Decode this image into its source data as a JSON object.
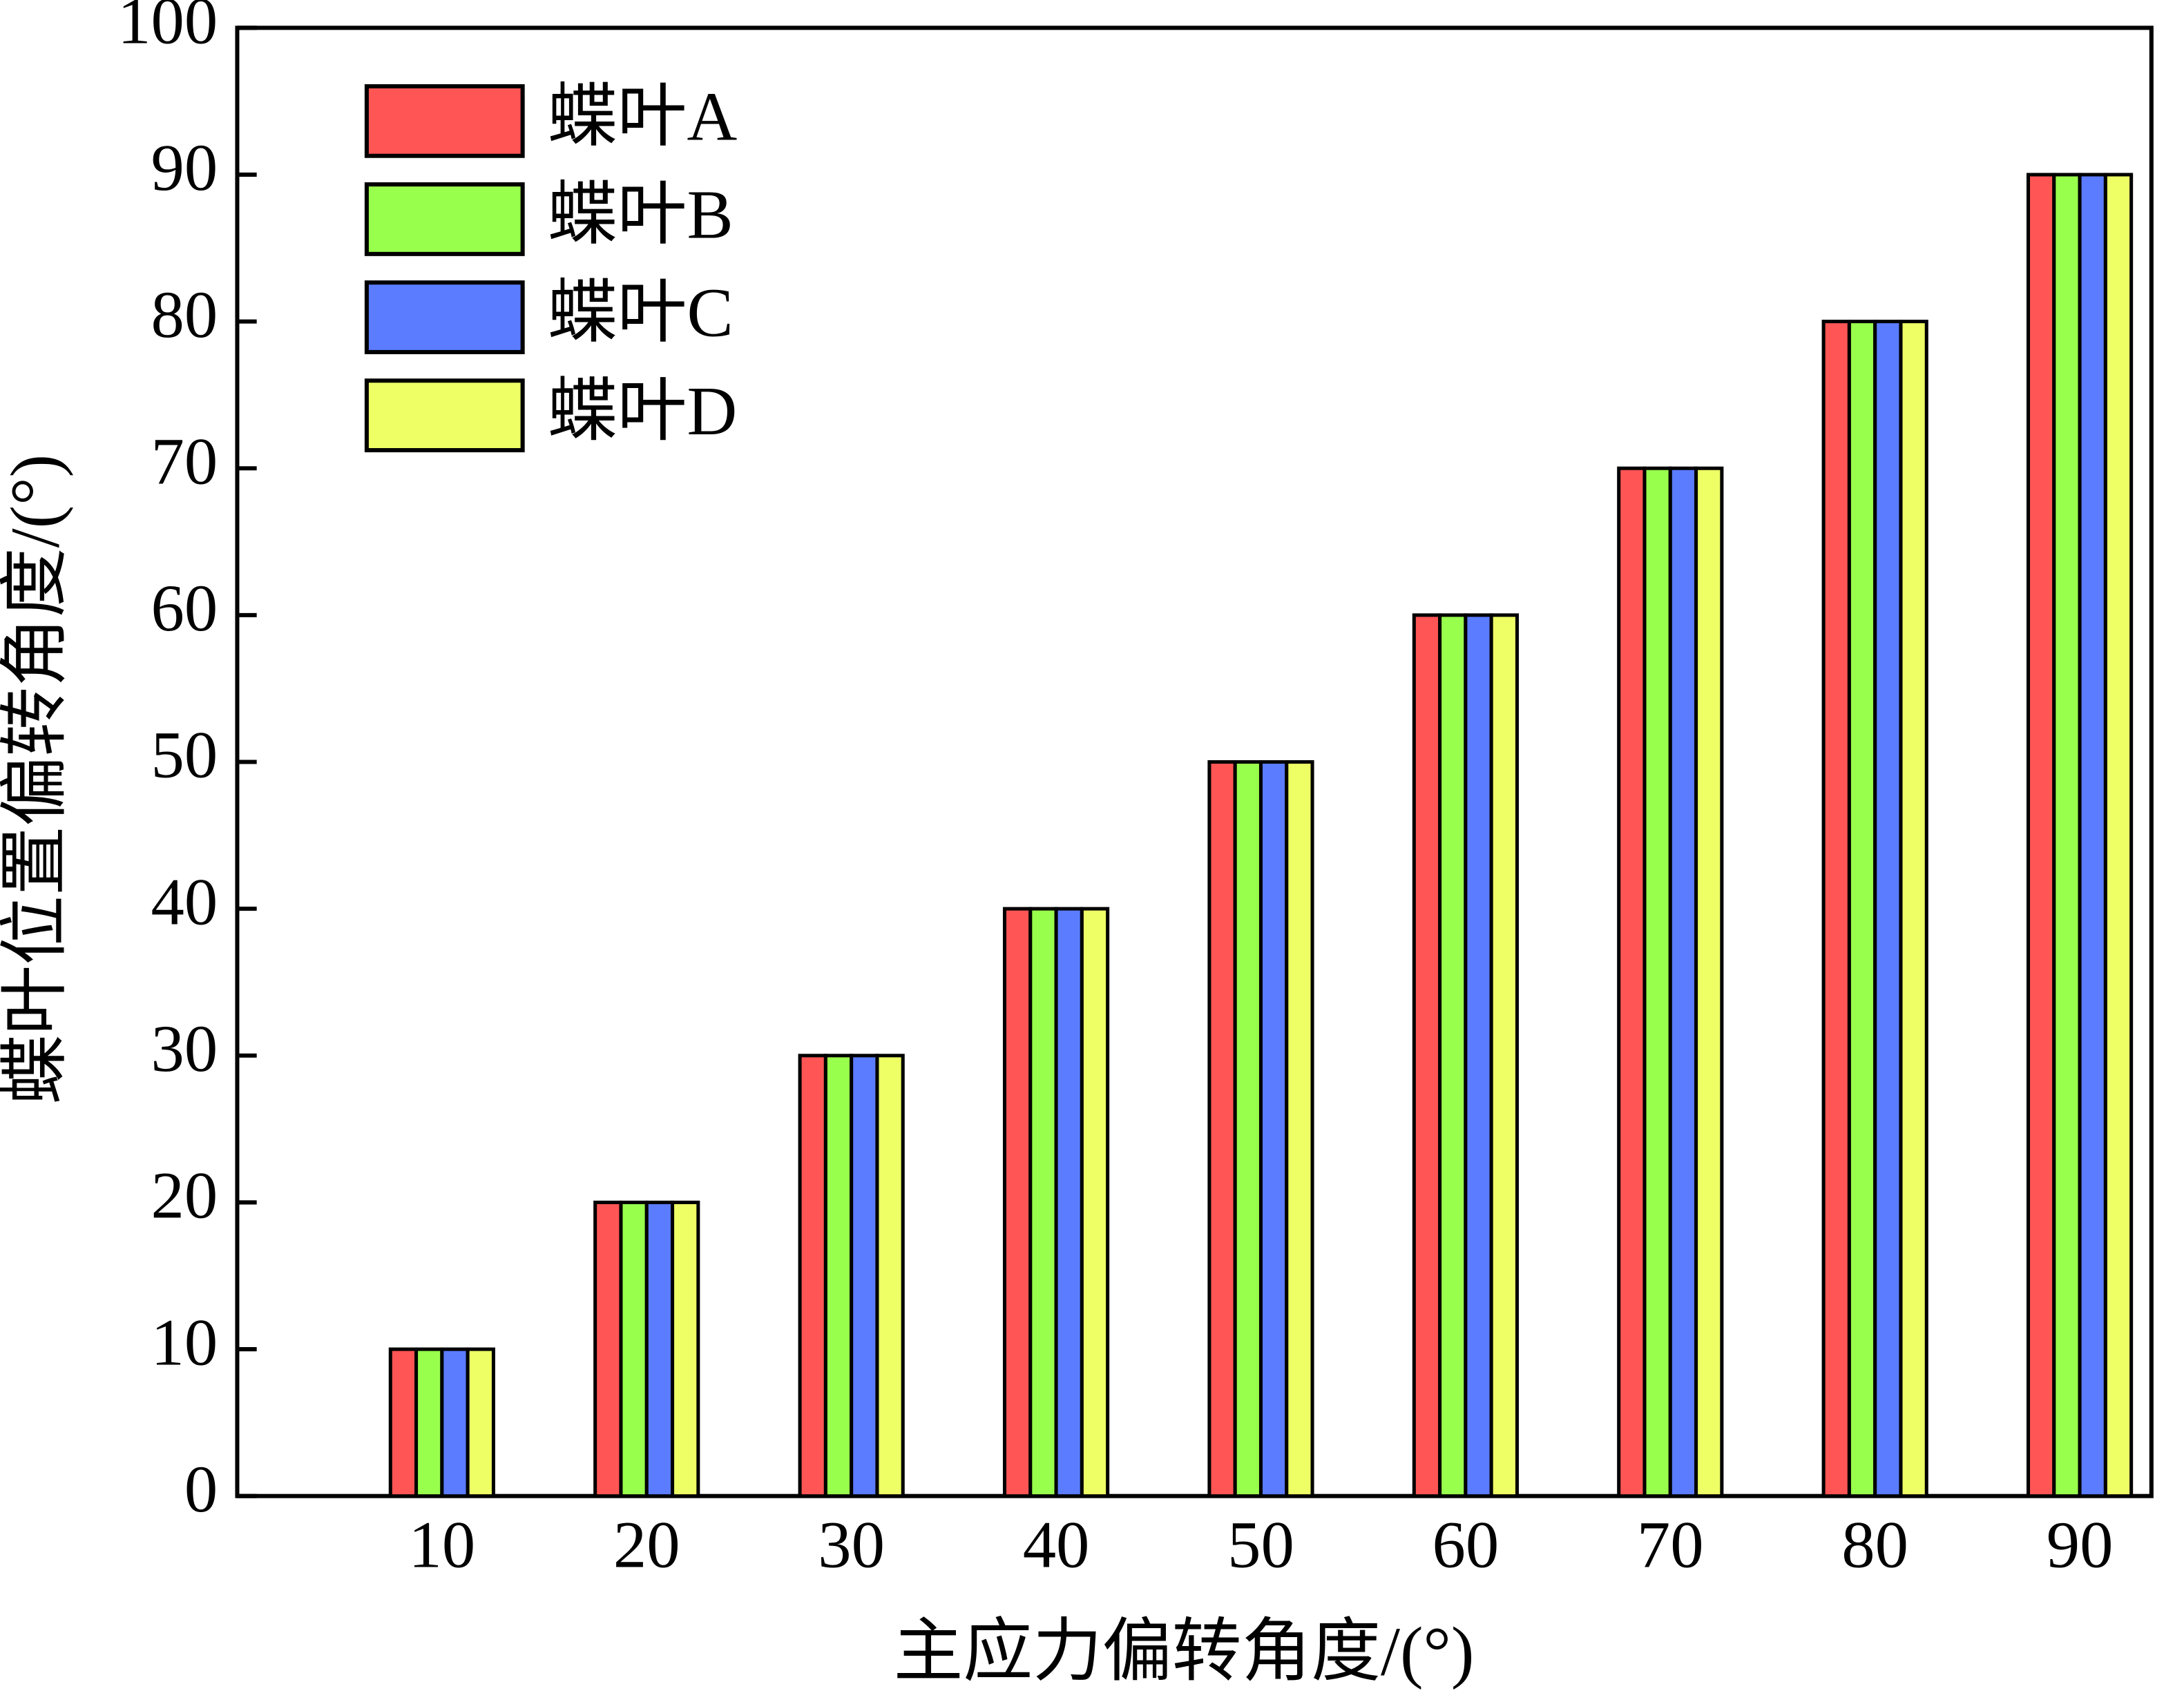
{
  "chart_data": {
    "type": "bar",
    "xlabel": "主应力偏转角度/(°)",
    "ylabel": "蝶叶位置偏转角度/(°)",
    "categories": [
      "10",
      "20",
      "30",
      "40",
      "50",
      "60",
      "70",
      "80",
      "90"
    ],
    "series": [
      {
        "name": "蝶叶A",
        "color": "#ff5555",
        "values": [
          10,
          20,
          30,
          40,
          50,
          60,
          70,
          80,
          90
        ]
      },
      {
        "name": "蝶叶B",
        "color": "#99ff4d",
        "values": [
          10,
          20,
          30,
          40,
          50,
          60,
          70,
          80,
          90
        ]
      },
      {
        "name": "蝶叶C",
        "color": "#5b7cff",
        "values": [
          10,
          20,
          30,
          40,
          50,
          60,
          70,
          80,
          90
        ]
      },
      {
        "name": "蝶叶D",
        "color": "#eeff66",
        "values": [
          10,
          20,
          30,
          40,
          50,
          60,
          70,
          80,
          90
        ]
      }
    ],
    "ylim": [
      0,
      100
    ],
    "yticks": [
      0,
      10,
      20,
      30,
      40,
      50,
      60,
      70,
      80,
      90,
      100
    ],
    "legend": "upper left"
  }
}
